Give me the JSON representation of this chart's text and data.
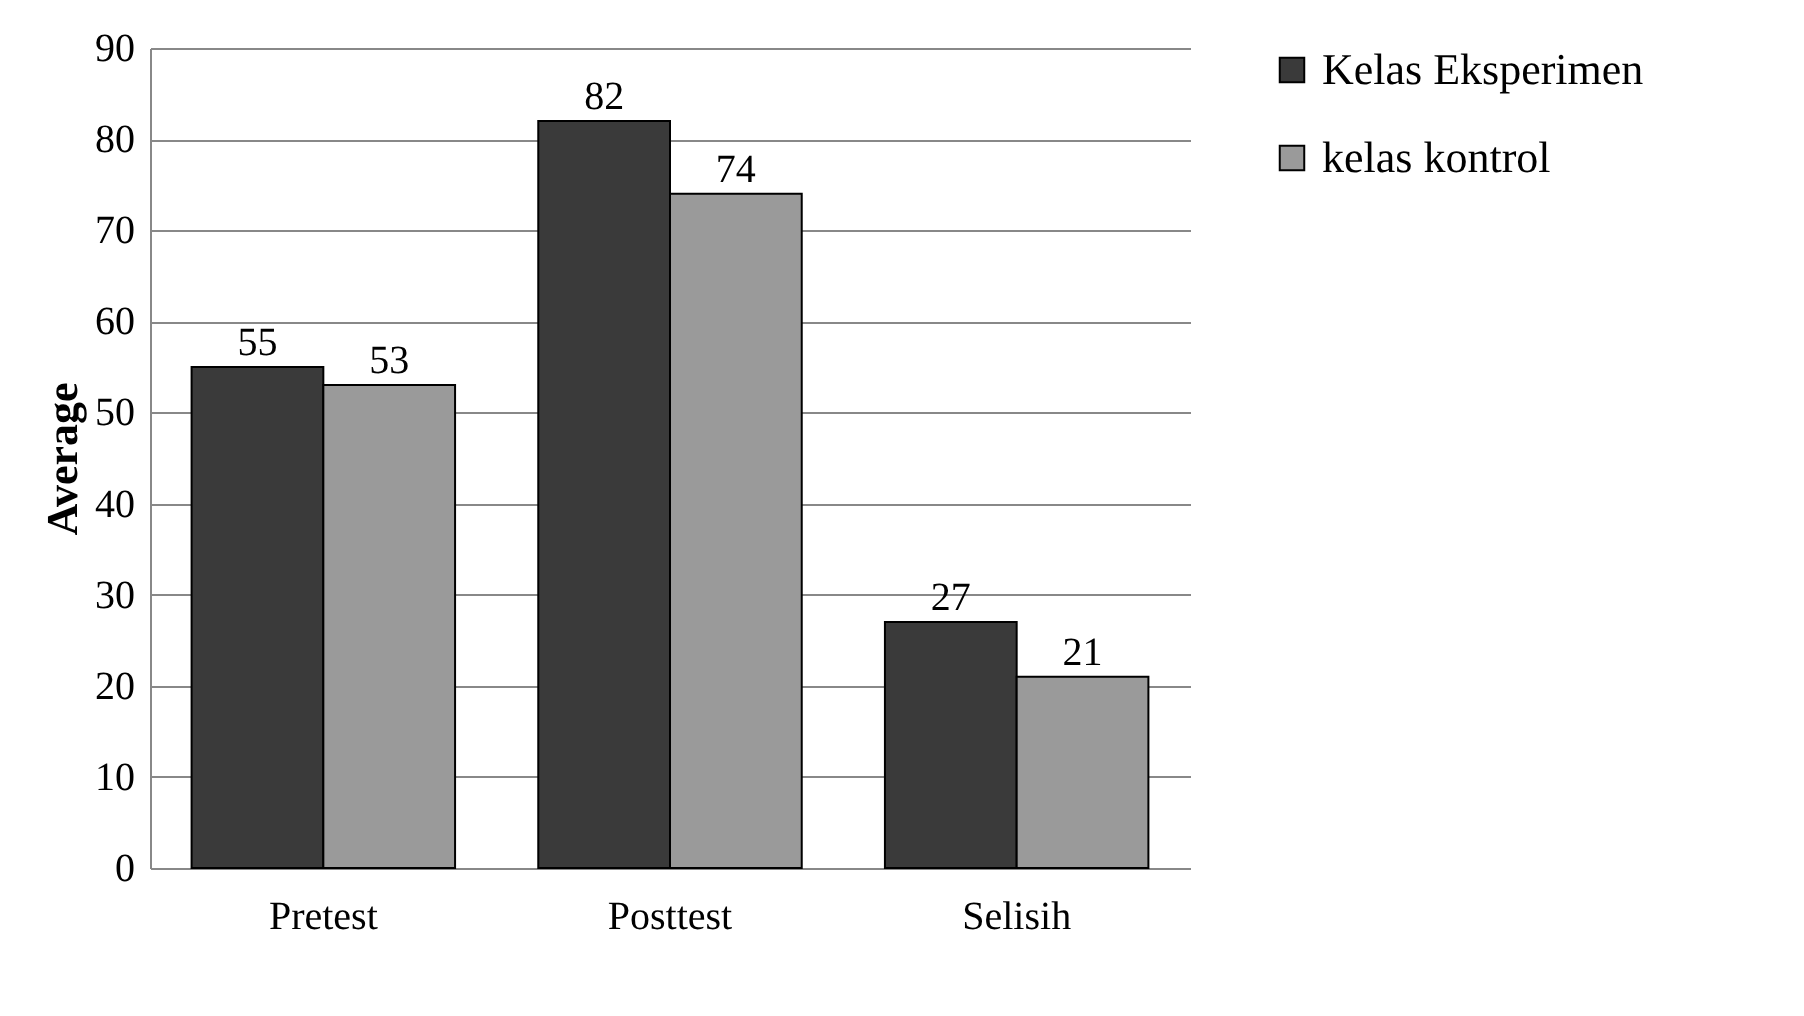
{
  "chart_data": {
    "type": "bar",
    "ylabel": "Average",
    "categories": [
      "Pretest",
      "Posttest",
      "Selisih"
    ],
    "series": [
      {
        "name": "Kelas Eksperimen",
        "color": "#3a3a3a",
        "values": [
          55,
          82,
          27
        ]
      },
      {
        "name": "kelas kontrol",
        "color": "#9a9a9a",
        "values": [
          53,
          74,
          21
        ]
      }
    ],
    "ylim": [
      0,
      90
    ],
    "yticks": [
      0,
      10,
      20,
      30,
      40,
      50,
      60,
      70,
      80,
      90
    ],
    "grid": "y",
    "legend": "right",
    "data_labels": true
  }
}
